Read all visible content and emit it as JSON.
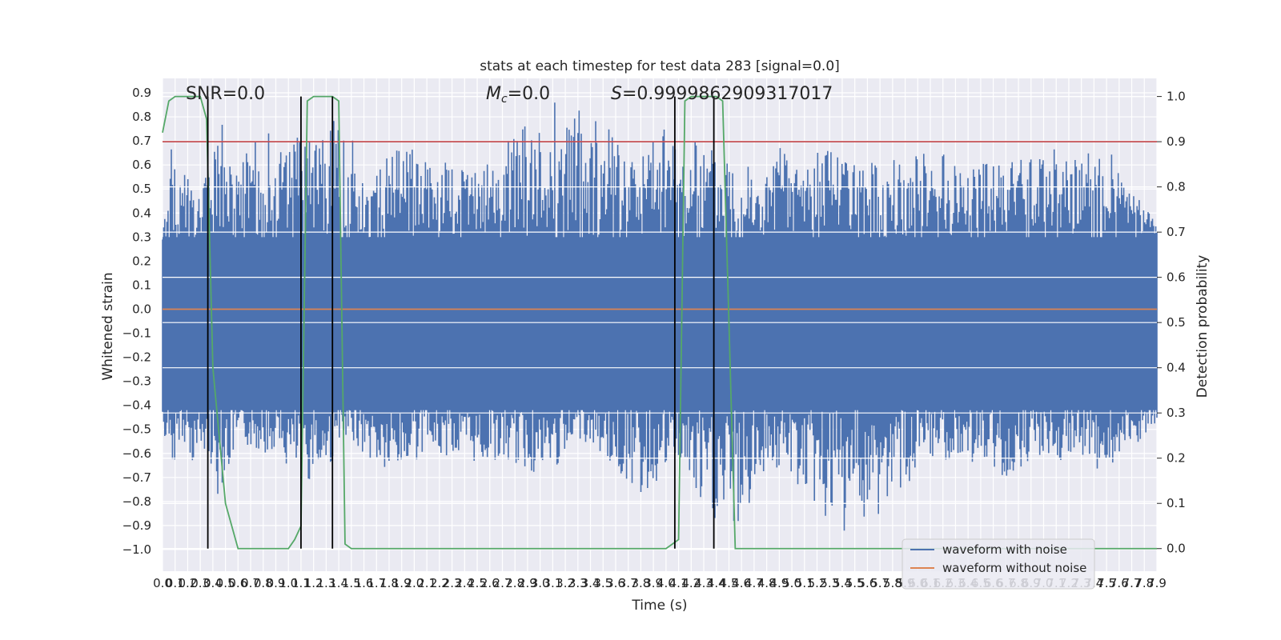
{
  "chart_data": {
    "type": "line",
    "title": "stats at each timestep for test data 283 [signal=0.0]",
    "xlabel": "Time (s)",
    "ylabel_left": "Whitened strain",
    "ylabel_right": "Detection probability",
    "xlim": [
      0.0,
      7.9
    ],
    "ylim_left": [
      -1.09,
      0.96
    ],
    "ylim_right": [
      -0.05,
      1.04
    ],
    "x_ticks": [
      0.0,
      0.1,
      0.2,
      0.3,
      0.4,
      0.5,
      0.6,
      0.7,
      0.8,
      0.9,
      1.0,
      1.1,
      1.2,
      1.3,
      1.4,
      1.5,
      1.6,
      1.7,
      1.8,
      1.9,
      2.0,
      2.1,
      2.2,
      2.3,
      2.4,
      2.5,
      2.6,
      2.7,
      2.8,
      2.9,
      3.0,
      3.1,
      3.2,
      3.3,
      3.4,
      3.5,
      3.6,
      3.7,
      3.8,
      3.9,
      4.0,
      4.1,
      4.2,
      4.3,
      4.4,
      4.5,
      4.6,
      4.7,
      4.8,
      4.9,
      5.0,
      5.1,
      5.2,
      5.3,
      5.4,
      5.5,
      5.6,
      5.7,
      5.8,
      5.9,
      6.0,
      6.1,
      6.2,
      6.3,
      6.4,
      6.5,
      6.6,
      6.7,
      6.8,
      6.9,
      7.0,
      7.1,
      7.2,
      7.3,
      7.4,
      7.5,
      7.6,
      7.7,
      7.8,
      7.9
    ],
    "x_tick_labels": [
      "0.0",
      "0.1",
      "0.2",
      "0.3",
      "0.4",
      "0.5",
      "0.6",
      "0.7",
      "0.8",
      "0.9",
      "1.0",
      "1.1",
      "1.2",
      "1.3",
      "1.4",
      "1.5",
      "1.6",
      "1.7",
      "1.8",
      "1.9",
      "2.0",
      "2.1",
      "2.2",
      "2.3",
      "2.4",
      "2.5",
      "2.6",
      "2.7",
      "2.8",
      "2.9",
      "3.0",
      "3.1",
      "3.2",
      "3.3",
      "3.4",
      "3.5",
      "3.6",
      "3.7",
      "3.8",
      "3.9",
      "4.0",
      "4.1",
      "4.2",
      "4.3",
      "4.4",
      "4.5",
      "4.6",
      "4.7",
      "4.8",
      "4.9",
      "5.0",
      "5.1",
      "5.2",
      "5.3",
      "5.4",
      "5.5",
      "5.6",
      "5.7",
      "5.8",
      "5.9",
      "6.0",
      "6.1",
      "6.2",
      "6.3",
      "6.4",
      "6.5",
      "6.6",
      "6.7",
      "6.8",
      "6.9",
      "7.0",
      "7.1",
      "7.2",
      "7.3",
      "7.4",
      "7.5",
      "7.6",
      "7.7",
      "7.8",
      "7.9"
    ],
    "y_left_ticks": [
      0.9,
      0.8,
      0.7,
      0.6,
      0.5,
      0.4,
      0.3,
      0.2,
      0.1,
      0.0,
      -0.1,
      -0.2,
      -0.3,
      -0.4,
      -0.5,
      -0.6,
      -0.7,
      -0.8,
      -0.9,
      -1.0
    ],
    "y_left_tick_labels": [
      "0.9",
      "0.8",
      "0.7",
      "0.6",
      "0.5",
      "0.4",
      "0.3",
      "0.2",
      "0.1",
      "0.0",
      "−0.1",
      "−0.2",
      "−0.3",
      "−0.4",
      "−0.5",
      "−0.6",
      "−0.7",
      "−0.8",
      "−0.9",
      "−1.0"
    ],
    "y_right_ticks": [
      1.0,
      0.9,
      0.8,
      0.7,
      0.6,
      0.5,
      0.4,
      0.3,
      0.2,
      0.1,
      0.0
    ],
    "y_right_tick_labels": [
      "1.0",
      "0.9",
      "0.8",
      "0.7",
      "0.6",
      "0.5",
      "0.4",
      "0.3",
      "0.2",
      "0.1",
      "0.0"
    ],
    "grid": true,
    "background": "#eaeaf2",
    "annotations": {
      "snr": "SNR=0.0",
      "mc_symbol": "M",
      "mc_sub": "c",
      "mc_value": "=0.0",
      "s_symbol": "S",
      "s_value": "=0.9999862909317017"
    },
    "series": [
      {
        "name": "waveform with noise",
        "axis": "left",
        "color": "#4c72b0",
        "style": "noise envelope, roughly between -0.5 and 0.5 with spikes",
        "upper_envelope_points": [
          [
            0.0,
            0.3
          ],
          [
            0.05,
            0.69
          ],
          [
            0.3,
            0.45
          ],
          [
            0.45,
            0.8
          ],
          [
            0.6,
            0.6
          ],
          [
            0.8,
            0.75
          ],
          [
            1.0,
            0.7
          ],
          [
            1.2,
            0.74
          ],
          [
            1.45,
            0.82
          ],
          [
            1.6,
            0.55
          ],
          [
            1.8,
            0.65
          ],
          [
            2.0,
            0.7
          ],
          [
            2.3,
            0.62
          ],
          [
            2.5,
            0.58
          ],
          [
            2.8,
            0.74
          ],
          [
            3.1,
            0.87
          ],
          [
            3.4,
            0.82
          ],
          [
            3.7,
            0.7
          ],
          [
            4.0,
            0.77
          ],
          [
            4.2,
            0.72
          ],
          [
            4.5,
            0.73
          ],
          [
            4.7,
            0.55
          ],
          [
            4.9,
            0.68
          ],
          [
            5.2,
            0.7
          ],
          [
            5.5,
            0.6
          ],
          [
            5.8,
            0.65
          ],
          [
            6.1,
            0.65
          ],
          [
            6.4,
            0.68
          ],
          [
            6.7,
            0.6
          ],
          [
            7.0,
            0.72
          ],
          [
            7.3,
            0.63
          ],
          [
            7.5,
            0.7
          ],
          [
            7.9,
            0.35
          ]
        ],
        "lower_envelope_points": [
          [
            0.0,
            -0.5
          ],
          [
            0.1,
            -0.68
          ],
          [
            0.35,
            -0.6
          ],
          [
            0.45,
            -0.79
          ],
          [
            0.6,
            -0.55
          ],
          [
            0.8,
            -0.6
          ],
          [
            1.0,
            -0.66
          ],
          [
            1.2,
            -0.72
          ],
          [
            1.5,
            -0.55
          ],
          [
            1.8,
            -0.7
          ],
          [
            2.1,
            -0.6
          ],
          [
            2.4,
            -0.63
          ],
          [
            2.8,
            -0.64
          ],
          [
            3.0,
            -0.7
          ],
          [
            3.4,
            -0.55
          ],
          [
            3.8,
            -0.78
          ],
          [
            4.1,
            -0.62
          ],
          [
            4.3,
            -0.87
          ],
          [
            4.6,
            -0.9
          ],
          [
            4.8,
            -0.65
          ],
          [
            5.0,
            -0.7
          ],
          [
            5.2,
            -0.82
          ],
          [
            5.5,
            -1.0
          ],
          [
            5.8,
            -0.78
          ],
          [
            6.1,
            -0.66
          ],
          [
            6.4,
            -0.63
          ],
          [
            6.7,
            -0.7
          ],
          [
            7.0,
            -0.6
          ],
          [
            7.3,
            -0.68
          ],
          [
            7.6,
            -0.64
          ],
          [
            7.9,
            -0.48
          ]
        ]
      },
      {
        "name": "waveform without noise",
        "axis": "left",
        "color": "#dd8452",
        "x": [
          0.0,
          7.9
        ],
        "y": [
          0.0,
          0.0
        ]
      },
      {
        "name": "",
        "axis": "right",
        "color": "#55a868",
        "x": [
          0.0,
          0.05,
          0.1,
          0.2,
          0.3,
          0.35,
          0.4,
          0.45,
          0.5,
          0.55,
          0.6,
          0.7,
          0.8,
          1.0,
          1.05,
          1.1,
          1.15,
          1.2,
          1.3,
          1.35,
          1.4,
          1.45,
          1.5,
          1.6,
          2.0,
          3.0,
          4.0,
          4.05,
          4.1,
          4.15,
          4.2,
          4.3,
          4.4,
          4.45,
          4.5,
          4.55,
          4.6,
          4.7,
          7.9
        ],
        "y": [
          0.92,
          0.99,
          1.0,
          1.0,
          1.0,
          0.95,
          0.4,
          0.25,
          0.1,
          0.05,
          0.0,
          0.0,
          0.0,
          0.0,
          0.02,
          0.05,
          0.99,
          1.0,
          1.0,
          1.0,
          0.99,
          0.01,
          0.0,
          0.0,
          0.0,
          0.0,
          0.0,
          0.01,
          0.02,
          0.99,
          1.0,
          1.0,
          1.0,
          0.99,
          0.5,
          0.0,
          0.0,
          0.0,
          0.0
        ]
      }
    ],
    "threshold": {
      "axis": "right",
      "value": 0.9,
      "color": "#c44e52"
    },
    "event_lines": {
      "color": "#000000",
      "x": [
        0.36,
        1.1,
        1.35,
        4.07,
        4.38
      ]
    },
    "legend": {
      "position": "lower-right",
      "entries": [
        {
          "label": "waveform with noise",
          "color": "#4c72b0"
        },
        {
          "label": "waveform without noise",
          "color": "#dd8452"
        }
      ]
    }
  }
}
